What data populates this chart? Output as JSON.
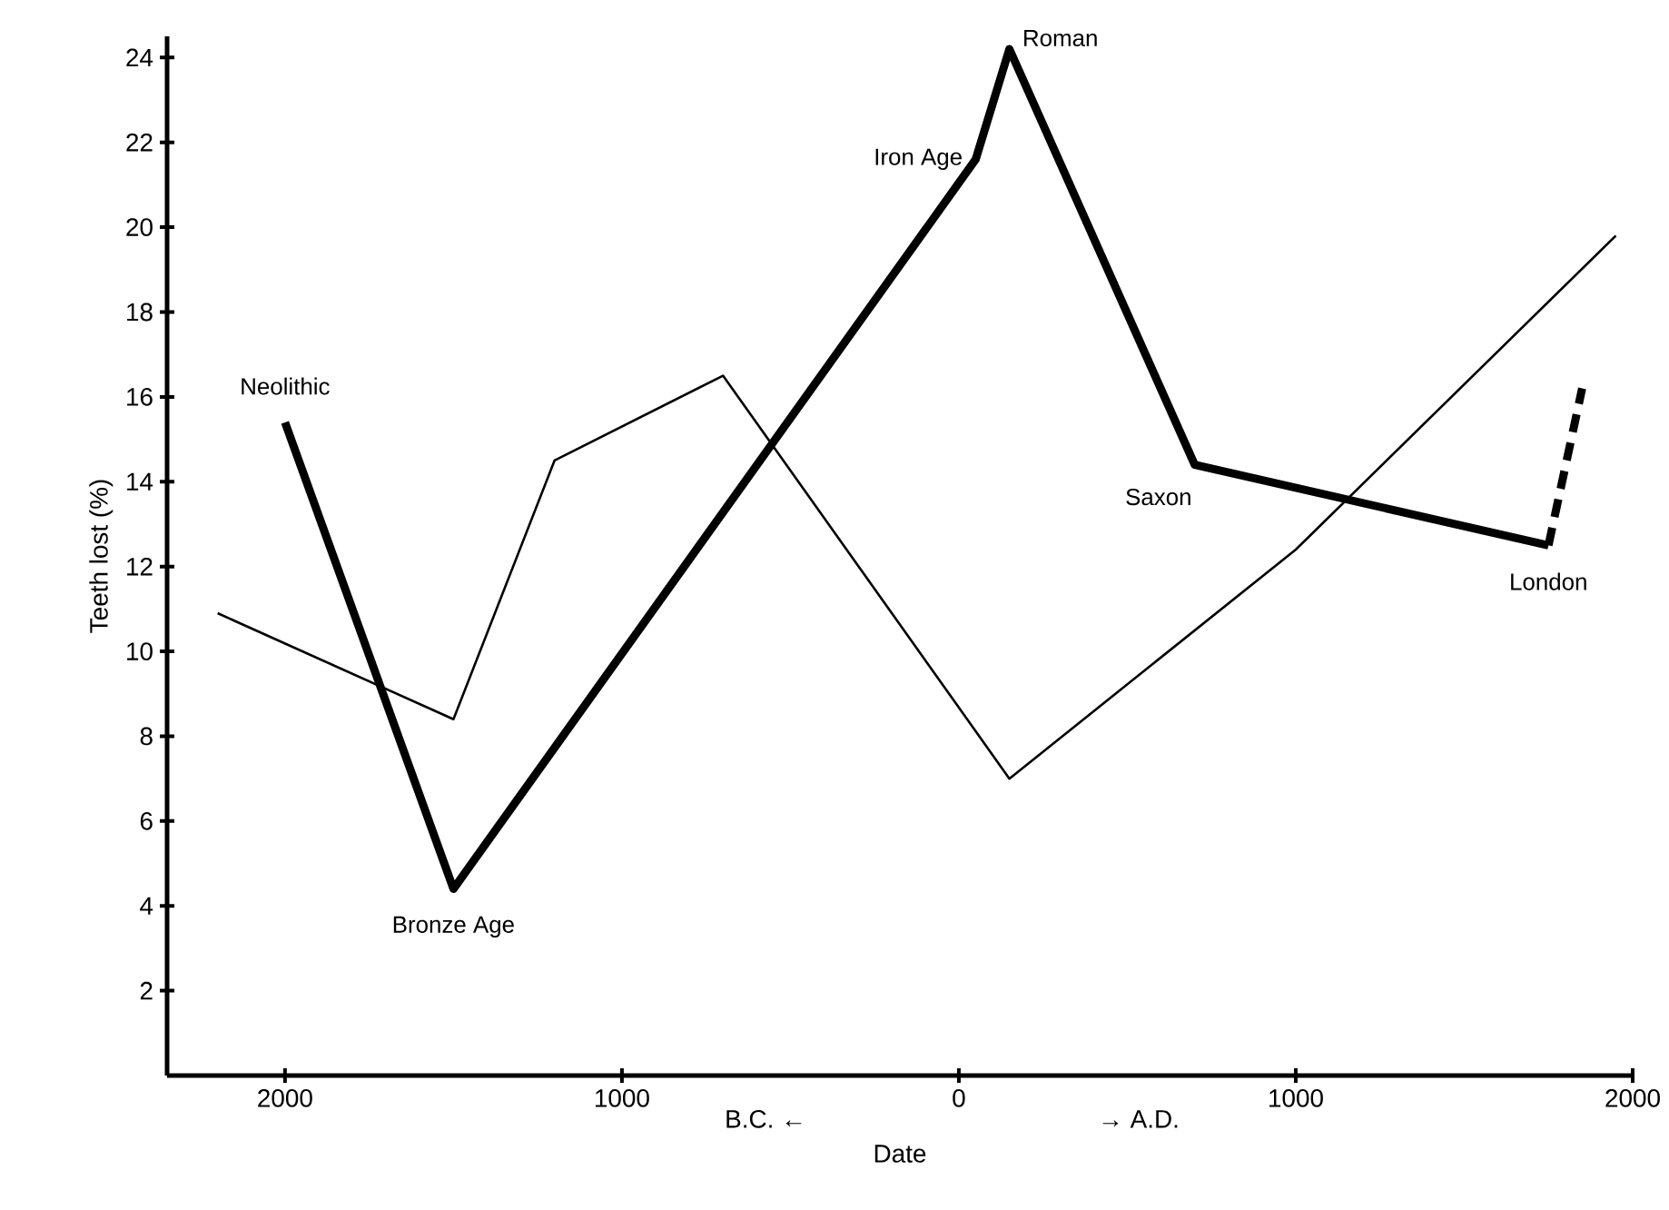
{
  "chart_data": {
    "type": "line",
    "xlabel": "Date",
    "ylabel": "Teeth lost (%)",
    "xlim": [
      -2350,
      2000
    ],
    "ylim": [
      0,
      24.5
    ],
    "xticks": [
      {
        "value": -2000,
        "label": "2000"
      },
      {
        "value": -1000,
        "label": "1000"
      },
      0,
      {
        "value": 1000,
        "label": "1000"
      },
      2000
    ],
    "yticks": [
      2,
      4,
      6,
      8,
      10,
      12,
      14,
      16,
      18,
      20,
      22,
      24
    ],
    "marker": "none",
    "series": [
      {
        "color": "#000000",
        "line_style": "solid",
        "x": [
          -2000,
          -1500,
          50,
          150,
          700,
          1750
        ],
        "values": [
          15.4,
          4.4,
          21.6,
          24.2,
          14.4,
          12.5
        ]
      },
      {
        "color": "#000000",
        "line_style": "solid",
        "x": [
          -2200,
          -1500,
          -1200,
          -700,
          150,
          1000,
          1950
        ],
        "values": [
          10.9,
          8.4,
          14.5,
          16.5,
          7.0,
          12.4,
          19.8
        ]
      },
      {
        "color": "#000000",
        "line_style": "dashed",
        "x": [
          1750,
          1850
        ],
        "values": [
          12.5,
          16.2
        ]
      }
    ],
    "annotations": [
      {
        "text": "Neolithic",
        "x": -2000,
        "y": 15.4
      },
      {
        "text": "Bronze Age",
        "x": -1500,
        "y": 4.4
      },
      {
        "text": "Iron Age",
        "x": 50,
        "y": 21.6
      },
      {
        "text": "Roman",
        "x": 150,
        "y": 24.2
      },
      {
        "text": "Saxon",
        "x": 700,
        "y": 14.4
      },
      {
        "text": "London",
        "x": 1750,
        "y": 12.5
      },
      "B.C. ←",
      "→ A.D."
    ]
  }
}
